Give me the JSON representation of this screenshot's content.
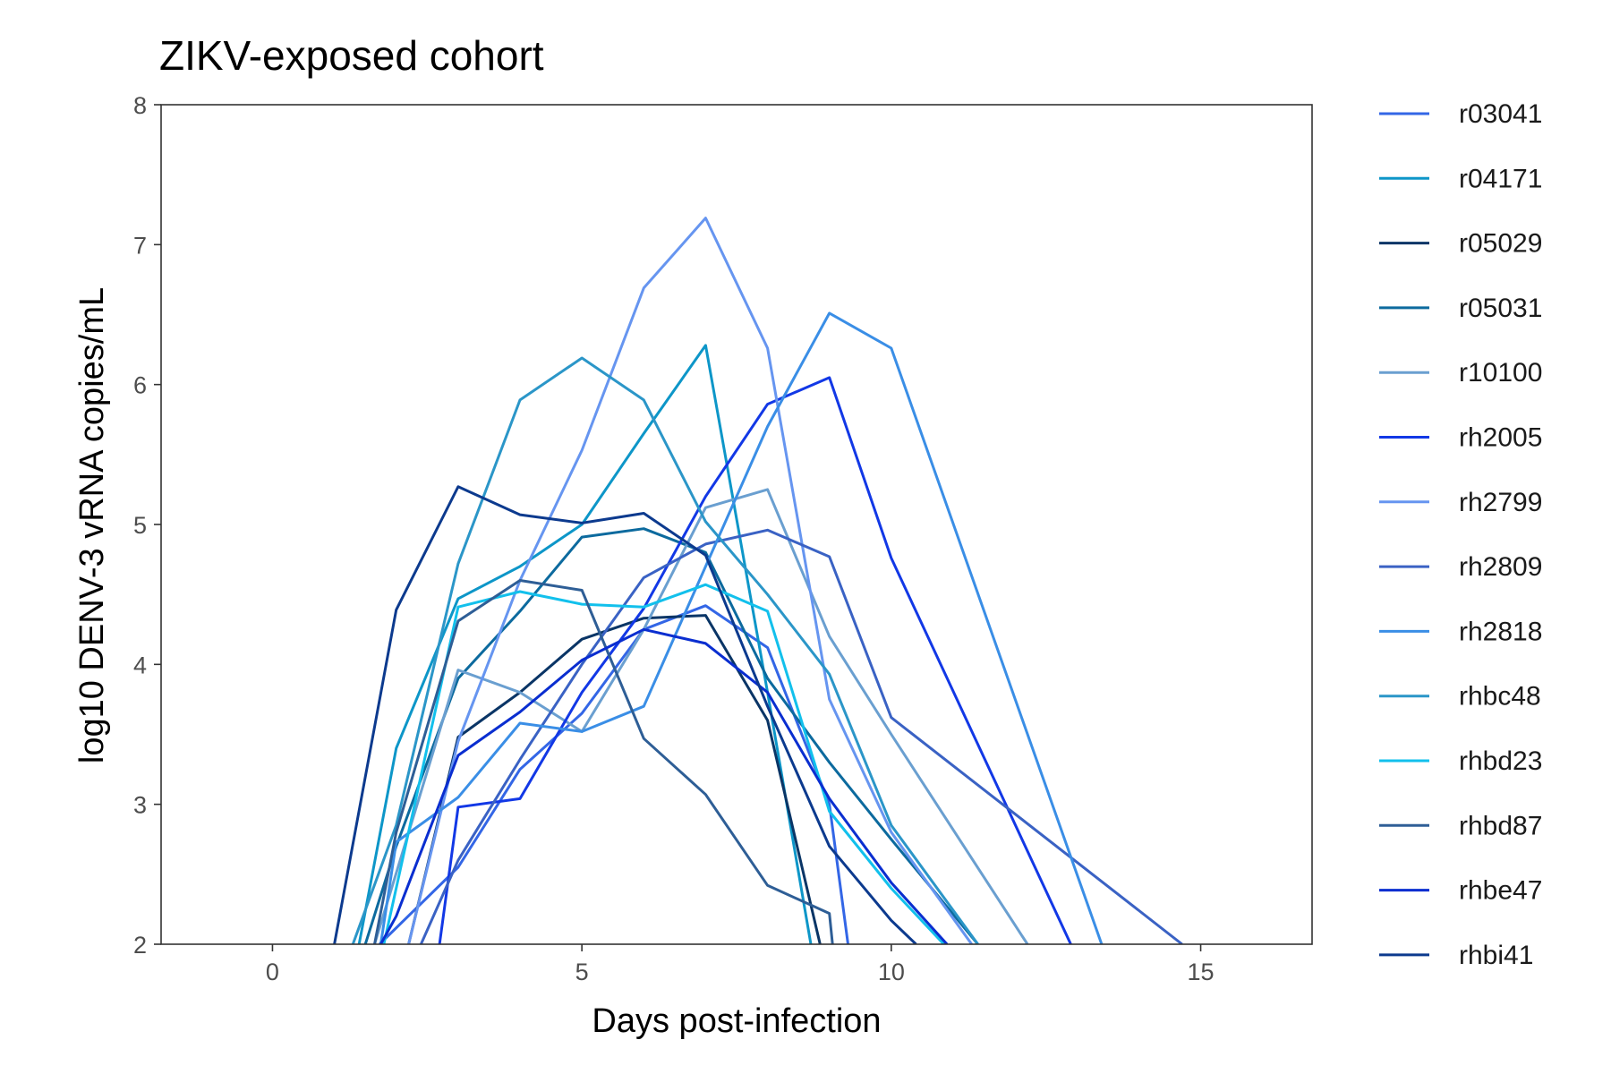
{
  "chart_data": {
    "type": "line",
    "title": "ZIKV-exposed cohort",
    "xlabel": "Days post-infection",
    "ylabel": "log10 DENV-3 vRNA copies/mL",
    "xlim": [
      -1.8,
      16.8
    ],
    "ylim": [
      2,
      8
    ],
    "xticks": [
      0,
      5,
      10,
      15
    ],
    "yticks": [
      2,
      3,
      4,
      5,
      6,
      7,
      8
    ],
    "grid": false,
    "legend_position": "right",
    "series": [
      {
        "name": "r03041",
        "color": "#3366e6",
        "x": [
          1.73,
          3,
          4,
          5,
          6,
          7,
          8,
          9,
          9.3
        ],
        "y": [
          2,
          2.55,
          3.25,
          3.65,
          4.25,
          4.42,
          4.12,
          3.0,
          2
        ]
      },
      {
        "name": "r04171",
        "color": "#0d96c8",
        "x": [
          1.4,
          2,
          3,
          4,
          5,
          6,
          7,
          8,
          8.7
        ],
        "y": [
          2,
          3.4,
          4.47,
          4.7,
          5.0,
          5.65,
          6.28,
          3.8,
          2
        ]
      },
      {
        "name": "r05029",
        "color": "#0a3566",
        "x": [
          2.2,
          3,
          4,
          5,
          6,
          7,
          8,
          8.85
        ],
        "y": [
          2,
          3.48,
          3.8,
          4.18,
          4.33,
          4.35,
          3.6,
          2
        ]
      },
      {
        "name": "r05031",
        "color": "#0c6a9e",
        "x": [
          1.5,
          2,
          3,
          4,
          5,
          6,
          7,
          8,
          9,
          10,
          11.4
        ],
        "y": [
          2,
          2.7,
          3.9,
          4.38,
          4.91,
          4.97,
          4.8,
          3.9,
          3.3,
          2.75,
          2
        ]
      },
      {
        "name": "r10100",
        "color": "#6a9fd0",
        "x": [
          1.65,
          3,
          4,
          5,
          6,
          7,
          8,
          9,
          10,
          12.2
        ],
        "y": [
          2,
          3.96,
          3.8,
          3.52,
          4.25,
          5.12,
          5.25,
          4.2,
          3.5,
          2
        ]
      },
      {
        "name": "rh2005",
        "color": "#1238e6",
        "x": [
          2.7,
          3,
          4,
          5,
          6,
          7,
          8,
          9,
          10,
          12.9
        ],
        "y": [
          2,
          2.98,
          3.04,
          3.8,
          4.4,
          5.2,
          5.86,
          6.05,
          4.76,
          2
        ]
      },
      {
        "name": "rh2799",
        "color": "#6695f0",
        "x": [
          2.2,
          3,
          4,
          5,
          6,
          7,
          8,
          9,
          10,
          11.3
        ],
        "y": [
          2,
          3.45,
          4.6,
          5.53,
          6.69,
          7.19,
          6.26,
          3.75,
          2.8,
          2
        ]
      },
      {
        "name": "rh2809",
        "color": "#3a62c4",
        "x": [
          2.4,
          3,
          4,
          5,
          6,
          7,
          8,
          9,
          10,
          14.7
        ],
        "y": [
          2,
          2.6,
          3.32,
          4.0,
          4.62,
          4.86,
          4.96,
          4.77,
          3.62,
          2
        ]
      },
      {
        "name": "rh2818",
        "color": "#3a8ee6",
        "x": [
          1.75,
          2,
          3,
          4,
          5,
          6,
          7,
          8,
          9,
          10,
          13.4
        ],
        "y": [
          2,
          2.73,
          3.05,
          3.58,
          3.52,
          3.7,
          4.7,
          5.7,
          6.51,
          6.26,
          2
        ]
      },
      {
        "name": "rhbc48",
        "color": "#2b96c8",
        "x": [
          1.3,
          2,
          3,
          4,
          5,
          6,
          7,
          8,
          9,
          10,
          11.4
        ],
        "y": [
          2,
          2.85,
          4.72,
          5.89,
          6.19,
          5.89,
          5.02,
          4.5,
          3.93,
          2.85,
          2
        ]
      },
      {
        "name": "rhbd23",
        "color": "#12c0ec",
        "x": [
          1.8,
          3,
          4,
          5,
          6,
          7,
          8,
          9,
          10,
          10.85
        ],
        "y": [
          2,
          4.41,
          4.52,
          4.43,
          4.41,
          4.57,
          4.38,
          2.95,
          2.4,
          2
        ]
      },
      {
        "name": "rhbd87",
        "color": "#2e5e96",
        "x": [
          1.65,
          2,
          3,
          4,
          5,
          6,
          7,
          8,
          9,
          9.05
        ],
        "y": [
          2,
          2.8,
          4.31,
          4.6,
          4.53,
          3.47,
          3.07,
          2.42,
          2.22,
          2
        ]
      },
      {
        "name": "rhbe47",
        "color": "#0a2ed0",
        "x": [
          1.75,
          2,
          3,
          4,
          5,
          6,
          7,
          8,
          9,
          10,
          10.9
        ],
        "y": [
          2,
          2.2,
          3.35,
          3.66,
          4.03,
          4.25,
          4.15,
          3.8,
          3.04,
          2.44,
          2
        ]
      },
      {
        "name": "rhbi41",
        "color": "#0c3a8e",
        "x": [
          1.0,
          2,
          3,
          4,
          5,
          6,
          7,
          8,
          9,
          10,
          10.4
        ],
        "y": [
          2,
          4.39,
          5.27,
          5.07,
          5.01,
          5.08,
          4.78,
          3.7,
          2.7,
          2.17,
          2
        ]
      }
    ]
  }
}
